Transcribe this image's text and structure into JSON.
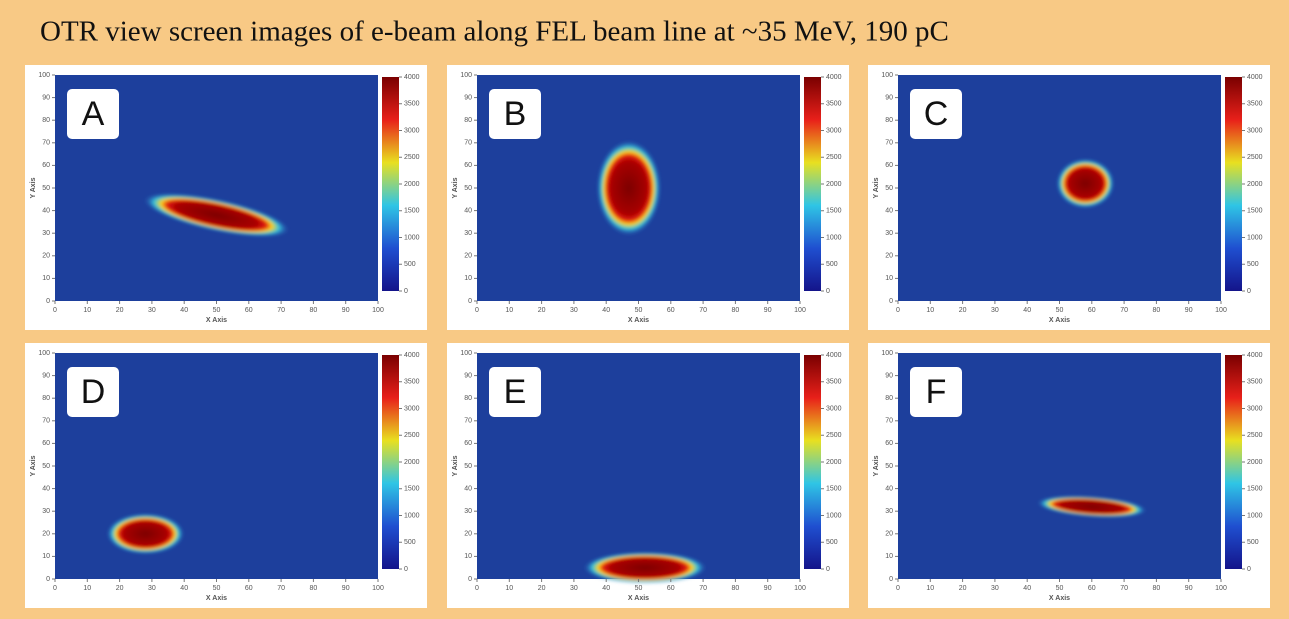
{
  "title": "OTR view screen images of e-beam along FEL beam line at ~35 MeV, 190 pC",
  "axes": {
    "x_label": "X Axis",
    "y_label": "Y Axis",
    "xlim": [
      0,
      100
    ],
    "ylim": [
      0,
      100
    ],
    "xticks": [
      0,
      10,
      20,
      30,
      40,
      50,
      60,
      70,
      80,
      90,
      100
    ],
    "yticks": [
      0,
      10,
      20,
      30,
      40,
      50,
      60,
      70,
      80,
      90,
      100
    ],
    "colorbar_lim": [
      0,
      4000
    ],
    "colorbar_ticks": [
      0,
      500,
      1000,
      1500,
      2000,
      2500,
      3000,
      3500,
      4000
    ]
  },
  "panels": [
    {
      "label": "A"
    },
    {
      "label": "B"
    },
    {
      "label": "C"
    },
    {
      "label": "D"
    },
    {
      "label": "E"
    },
    {
      "label": "F"
    }
  ]
}
